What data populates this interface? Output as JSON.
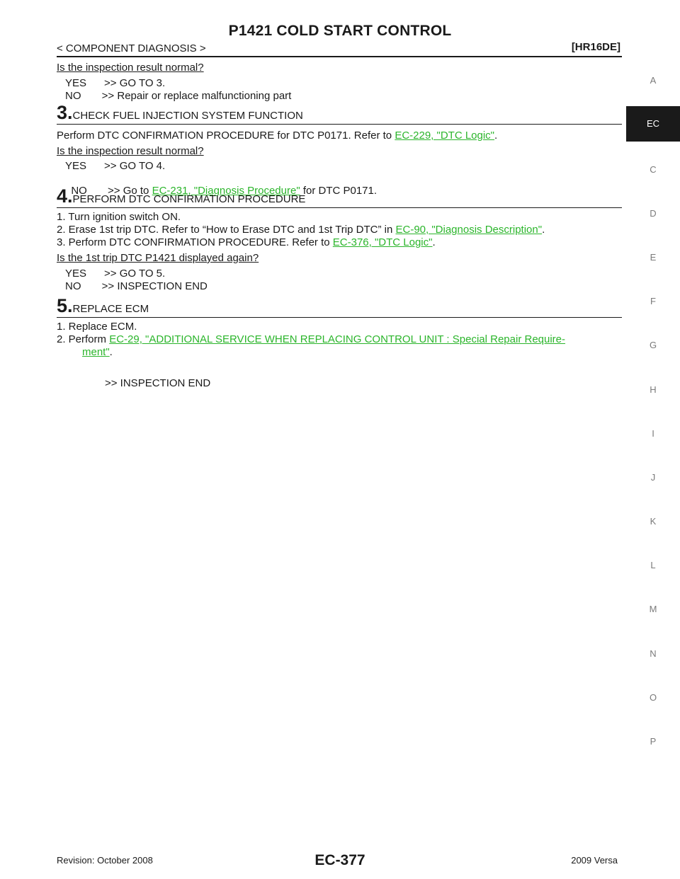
{
  "header": {
    "title": "P1421 COLD START CONTROL",
    "breadcrumb": "< COMPONENT DIAGNOSIS >",
    "model": "[HR16DE]"
  },
  "side_tabs": [
    "A",
    "EC",
    "C",
    "D",
    "E",
    "F",
    "G",
    "H",
    "I",
    "J",
    "K",
    "L",
    "M",
    "N",
    "O",
    "P"
  ],
  "active_tab": "EC",
  "top": {
    "question": "Is the inspection result normal?",
    "yes": "YES      >> GO TO 3.",
    "no": "NO       >> Repair or replace malfunctioning part"
  },
  "step3": {
    "num": "3.",
    "title": "CHECK FUEL INJECTION SYSTEM FUNCTION",
    "text_pre": "Perform DTC CONFIRMATION PROCEDURE for DTC P0171. Refer to ",
    "link": "EC-229, \"DTC Logic\"",
    "text_post": ".",
    "question": "Is the inspection result normal?",
    "yes": "YES      >> GO TO 4.",
    "no_pre": "NO       >> Go to ",
    "no_link": "EC-231, \"Diagnosis Procedure\"",
    "no_post": " for DTC P0171."
  },
  "step4": {
    "num": "4.",
    "title": "PERFORM DTC CONFIRMATION PROCEDURE",
    "item1": "1. Turn ignition switch ON.",
    "item2_pre": "2. Erase 1st trip DTC. Refer to “How to Erase DTC and 1st Trip DTC” in ",
    "item2_link": "EC-90, \"Diagnosis Description\"",
    "item2_post": ".",
    "item3_pre": "3. Perform DTC CONFIRMATION PROCEDURE. Refer to ",
    "item3_link": "EC-376, \"DTC Logic\"",
    "item3_post": ".",
    "question": "Is the 1st trip DTC P1421 displayed again?",
    "yes": "YES      >> GO TO 5.",
    "no": "NO       >> INSPECTION END"
  },
  "step5": {
    "num": "5.",
    "title": "REPLACE ECM",
    "item1": "1. Replace ECM.",
    "item2_pre": "2. Perform ",
    "item2_link_a": "EC-29, \"ADDITIONAL SERVICE WHEN REPLACING CONTROL UNIT : Special Repair Require-",
    "item2_link_b": "ment\"",
    "item2_post": ".",
    "end": ">> INSPECTION END"
  },
  "footer": {
    "revision": "Revision: October 2008",
    "page": "EC-377",
    "model_year": "2009 Versa"
  }
}
